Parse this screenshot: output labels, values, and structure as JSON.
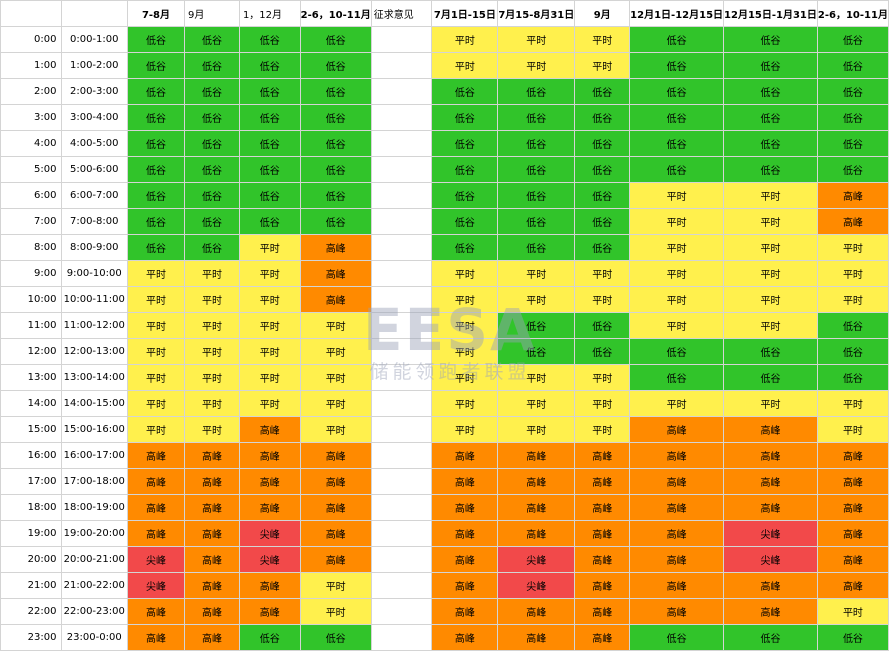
{
  "table": {
    "headers": [
      "",
      "",
      "7-8月",
      "9月",
      "1，12月",
      "2-6，10-11月",
      "征求意见",
      "7月1日-15日",
      "7月15-8月31日",
      "9月",
      "12月1日-12月15日",
      "12月15日-1月31日",
      "2-6，10-11月"
    ],
    "header_align": [
      "",
      "",
      "c",
      "l",
      "l",
      "c",
      "note",
      "c",
      "c",
      "c",
      "c",
      "c",
      "c"
    ],
    "labels": {
      "low": "低谷",
      "flat": "平时",
      "high": "高峰",
      "peak": "尖峰"
    },
    "rows": [
      {
        "hour": "0:00",
        "range": "0:00-1:00",
        "left": [
          "low",
          "low",
          "low",
          "low"
        ],
        "right": [
          "flat",
          "flat",
          "flat",
          "low",
          "low",
          "low"
        ]
      },
      {
        "hour": "1:00",
        "range": "1:00-2:00",
        "left": [
          "low",
          "low",
          "low",
          "low"
        ],
        "right": [
          "flat",
          "flat",
          "flat",
          "low",
          "low",
          "low"
        ]
      },
      {
        "hour": "2:00",
        "range": "2:00-3:00",
        "left": [
          "low",
          "low",
          "low",
          "low"
        ],
        "right": [
          "low",
          "low",
          "low",
          "low",
          "low",
          "low"
        ]
      },
      {
        "hour": "3:00",
        "range": "3:00-4:00",
        "left": [
          "low",
          "low",
          "low",
          "low"
        ],
        "right": [
          "low",
          "low",
          "low",
          "low",
          "low",
          "low"
        ]
      },
      {
        "hour": "4:00",
        "range": "4:00-5:00",
        "left": [
          "low",
          "low",
          "low",
          "low"
        ],
        "right": [
          "low",
          "low",
          "low",
          "low",
          "low",
          "low"
        ]
      },
      {
        "hour": "5:00",
        "range": "5:00-6:00",
        "left": [
          "low",
          "low",
          "low",
          "low"
        ],
        "right": [
          "low",
          "low",
          "low",
          "low",
          "low",
          "low"
        ]
      },
      {
        "hour": "6:00",
        "range": "6:00-7:00",
        "left": [
          "low",
          "low",
          "low",
          "low"
        ],
        "right": [
          "low",
          "low",
          "low",
          "flat",
          "flat",
          "high"
        ]
      },
      {
        "hour": "7:00",
        "range": "7:00-8:00",
        "left": [
          "low",
          "low",
          "low",
          "low"
        ],
        "right": [
          "low",
          "low",
          "low",
          "flat",
          "flat",
          "high"
        ]
      },
      {
        "hour": "8:00",
        "range": "8:00-9:00",
        "left": [
          "low",
          "low",
          "flat",
          "high"
        ],
        "right": [
          "low",
          "low",
          "low",
          "flat",
          "flat",
          "flat"
        ]
      },
      {
        "hour": "9:00",
        "range": "9:00-10:00",
        "left": [
          "flat",
          "flat",
          "flat",
          "high"
        ],
        "right": [
          "flat",
          "flat",
          "flat",
          "flat",
          "flat",
          "flat"
        ]
      },
      {
        "hour": "10:00",
        "range": "10:00-11:00",
        "left": [
          "flat",
          "flat",
          "flat",
          "high"
        ],
        "right": [
          "flat",
          "flat",
          "flat",
          "flat",
          "flat",
          "flat"
        ]
      },
      {
        "hour": "11:00",
        "range": "11:00-12:00",
        "left": [
          "flat",
          "flat",
          "flat",
          "flat"
        ],
        "right": [
          "flat",
          "low",
          "low",
          "flat",
          "flat",
          "low"
        ]
      },
      {
        "hour": "12:00",
        "range": "12:00-13:00",
        "left": [
          "flat",
          "flat",
          "flat",
          "flat"
        ],
        "right": [
          "flat",
          "low",
          "low",
          "low",
          "low",
          "low"
        ]
      },
      {
        "hour": "13:00",
        "range": "13:00-14:00",
        "left": [
          "flat",
          "flat",
          "flat",
          "flat"
        ],
        "right": [
          "flat",
          "flat",
          "flat",
          "low",
          "low",
          "low"
        ]
      },
      {
        "hour": "14:00",
        "range": "14:00-15:00",
        "left": [
          "flat",
          "flat",
          "flat",
          "flat"
        ],
        "right": [
          "flat",
          "flat",
          "flat",
          "flat",
          "flat",
          "flat"
        ]
      },
      {
        "hour": "15:00",
        "range": "15:00-16:00",
        "left": [
          "flat",
          "flat",
          "high",
          "flat"
        ],
        "right": [
          "flat",
          "flat",
          "flat",
          "high",
          "high",
          "flat"
        ]
      },
      {
        "hour": "16:00",
        "range": "16:00-17:00",
        "left": [
          "high",
          "high",
          "high",
          "high"
        ],
        "right": [
          "high",
          "high",
          "high",
          "high",
          "high",
          "high"
        ]
      },
      {
        "hour": "17:00",
        "range": "17:00-18:00",
        "left": [
          "high",
          "high",
          "high",
          "high"
        ],
        "right": [
          "high",
          "high",
          "high",
          "high",
          "high",
          "high"
        ]
      },
      {
        "hour": "18:00",
        "range": "18:00-19:00",
        "left": [
          "high",
          "high",
          "high",
          "high"
        ],
        "right": [
          "high",
          "high",
          "high",
          "high",
          "high",
          "high"
        ]
      },
      {
        "hour": "19:00",
        "range": "19:00-20:00",
        "left": [
          "high",
          "high",
          "peak",
          "high"
        ],
        "right": [
          "high",
          "high",
          "high",
          "high",
          "peak",
          "high"
        ]
      },
      {
        "hour": "20:00",
        "range": "20:00-21:00",
        "left": [
          "peak",
          "high",
          "peak",
          "high"
        ],
        "right": [
          "high",
          "peak",
          "high",
          "high",
          "peak",
          "high"
        ]
      },
      {
        "hour": "21:00",
        "range": "21:00-22:00",
        "left": [
          "peak",
          "high",
          "high",
          "flat"
        ],
        "right": [
          "high",
          "peak",
          "high",
          "high",
          "high",
          "high"
        ]
      },
      {
        "hour": "22:00",
        "range": "22:00-23:00",
        "left": [
          "high",
          "high",
          "high",
          "flat"
        ],
        "right": [
          "high",
          "high",
          "high",
          "high",
          "high",
          "flat"
        ]
      },
      {
        "hour": "23:00",
        "range": "23:00-0:00",
        "left": [
          "high",
          "high",
          "low",
          "low"
        ],
        "right": [
          "high",
          "high",
          "high",
          "low",
          "low",
          "low"
        ]
      }
    ]
  },
  "watermark": {
    "logo": "EESA",
    "subtitle": "储能领跑者联盟"
  },
  "colors": {
    "low": "#31c42a",
    "flat": "#fff04d",
    "high": "#ff8a00",
    "peak": "#f2494a"
  }
}
